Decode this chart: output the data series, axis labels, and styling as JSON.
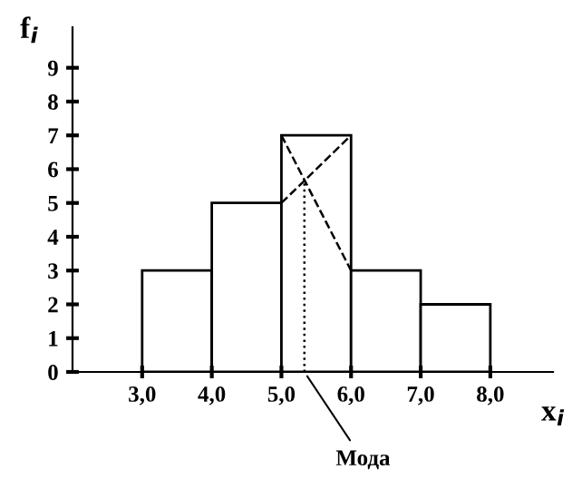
{
  "chart_data": {
    "type": "histogram",
    "xlabel": "x$_{i}$",
    "ylabel": "f$_{i}$",
    "bins": [
      3.0,
      4.0,
      5.0,
      6.0,
      7.0,
      8.0
    ],
    "values": [
      3,
      5,
      7,
      3,
      2
    ],
    "color": "#ffffff",
    "series": [
      {
        "type": "line",
        "x": [
          5.0,
          6.0
        ],
        "values": [
          5,
          7
        ],
        "color": "#000000",
        "line_style": "dashed"
      },
      {
        "type": "line",
        "x": [
          5.0,
          6.0
        ],
        "values": [
          7,
          3
        ],
        "color": "#000000",
        "line_style": "dashed"
      },
      {
        "type": "line",
        "x": [
          5.33,
          5.33
        ],
        "values": [
          0,
          5.67
        ],
        "color": "#000000",
        "line_style": "dotted"
      }
    ],
    "annotations": [
      {
        "text": "Мода",
        "x": 5.33,
        "y": 0
      }
    ],
    "xlim": [
      2.0,
      8.9
    ],
    "ylim": [
      0,
      10.2
    ],
    "xticks": [
      {
        "value": 3,
        "label": "3,0"
      },
      {
        "value": 4,
        "label": "4,0"
      },
      {
        "value": 5,
        "label": "5,0"
      },
      {
        "value": 6,
        "label": "6,0"
      },
      {
        "value": 7,
        "label": "7,0"
      },
      {
        "value": 8,
        "label": "8,0"
      }
    ],
    "yticks": [
      0,
      1,
      2,
      3,
      4,
      5,
      6,
      7,
      8,
      9
    ],
    "grid": false,
    "legend": false
  }
}
